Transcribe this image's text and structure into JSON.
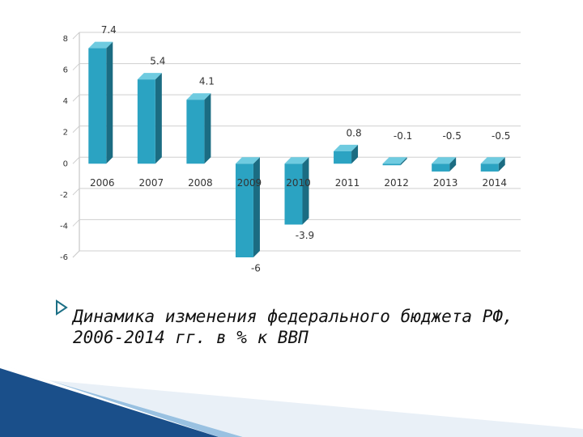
{
  "chart_data": {
    "type": "bar",
    "title": "Динамика изменения федерального бюджета РФ, 2006-2014 гг. в % к ВВП",
    "categories": [
      "2006",
      "2007",
      "2008",
      "2009",
      "2010",
      "2011",
      "2012",
      "2013",
      "2014"
    ],
    "values": [
      7.4,
      5.4,
      4.1,
      -6,
      -3.9,
      0.8,
      -0.1,
      -0.5,
      -0.5
    ],
    "color": "#2ba3c2",
    "ylim": [
      -6,
      8
    ],
    "yticks": [
      8,
      6,
      4,
      2,
      0,
      -2,
      -4,
      -6
    ],
    "grid": true
  }
}
